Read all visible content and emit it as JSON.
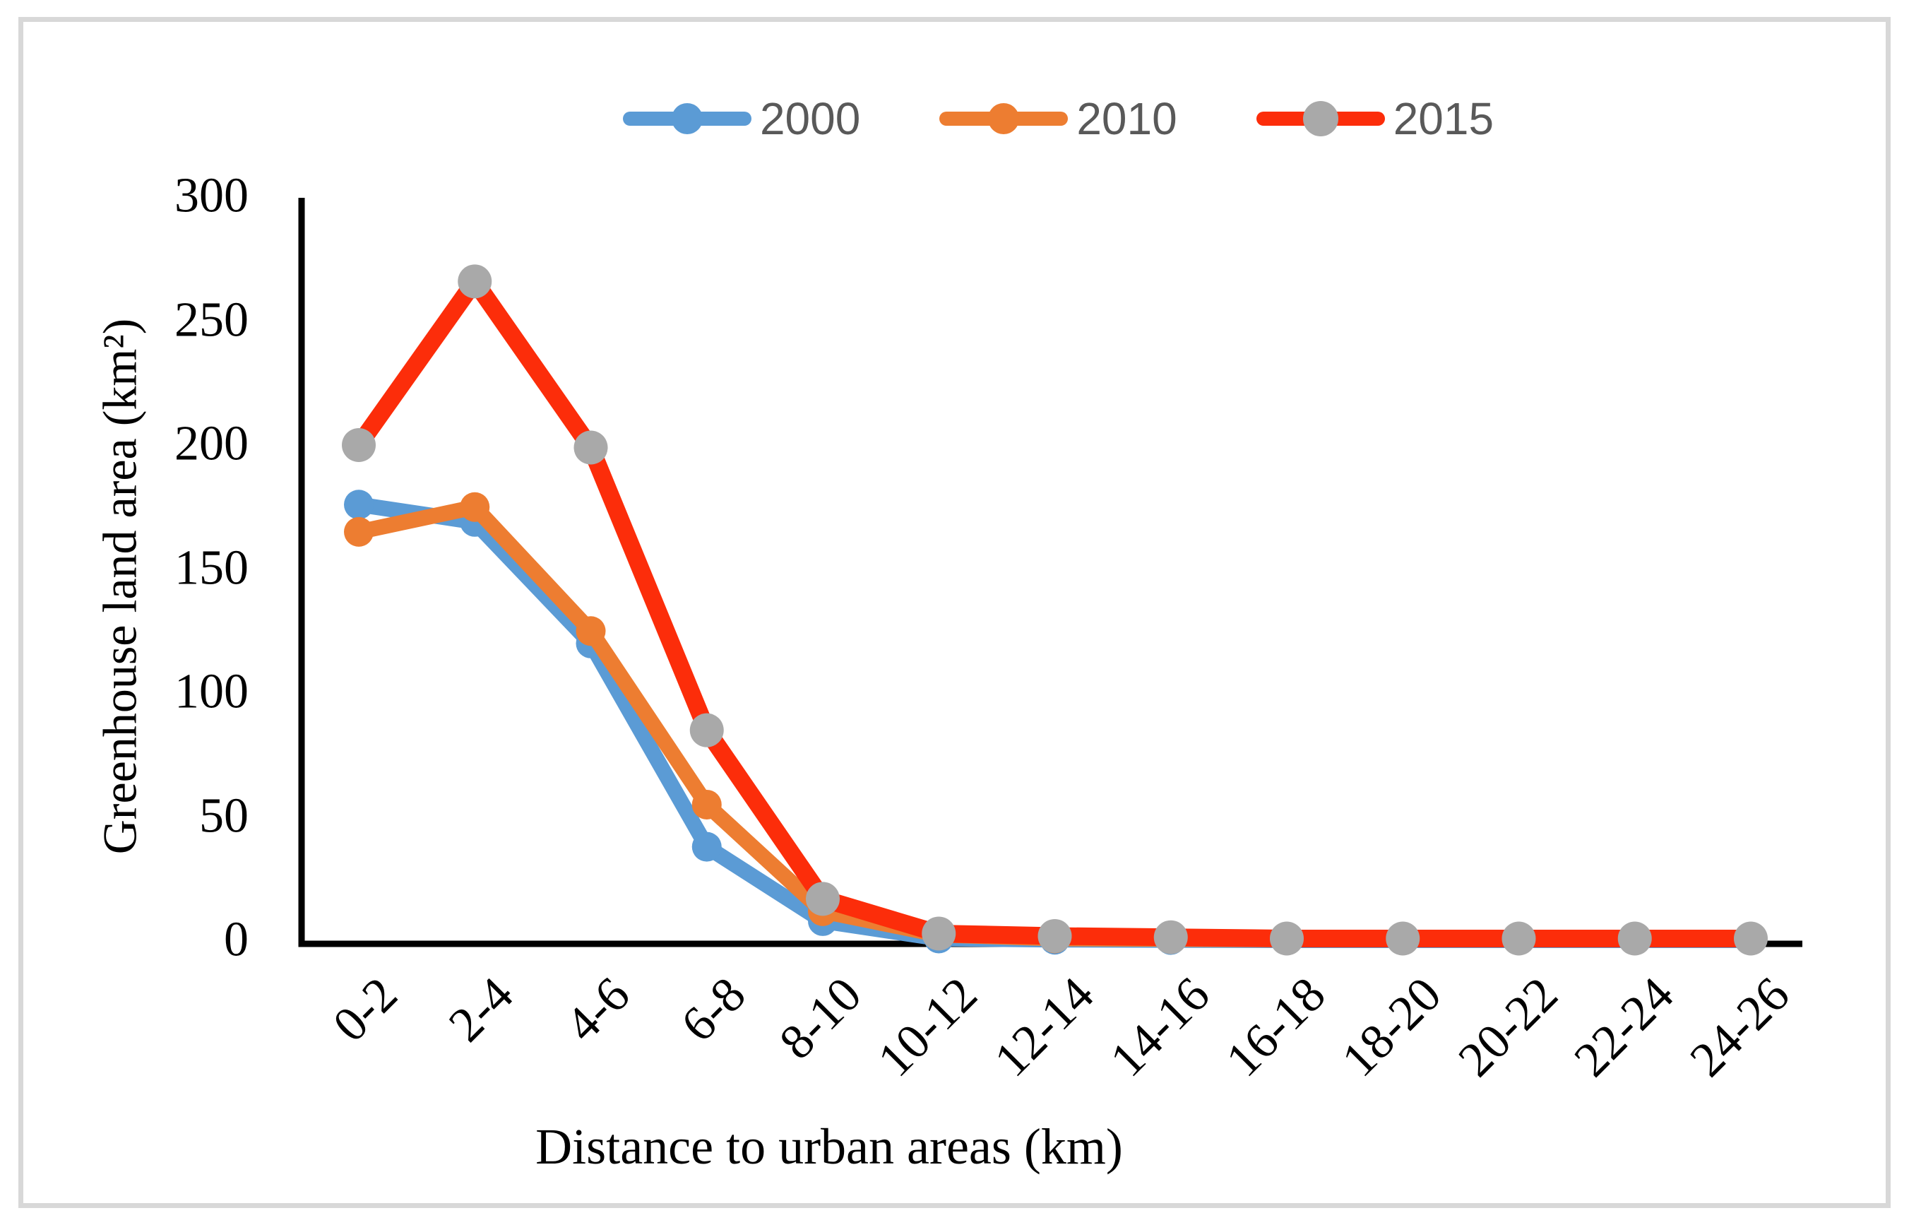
{
  "figure": {
    "background_color": "#FFFFFF",
    "border_color": "#D8D8D8"
  },
  "legend": {
    "position": "top",
    "text_color": "#595959"
  },
  "chart_data": {
    "type": "line",
    "title": "",
    "xlabel": "Distance to urban areas (km)",
    "ylabel": "Greenhouse land area (km²)",
    "categories": [
      "0-2",
      "2-4",
      "4-6",
      "6-8",
      "8-10",
      "10-12",
      "12-14",
      "14-16",
      "16-18",
      "18-20",
      "20-22",
      "22-24",
      "24-26"
    ],
    "y_ticks": [
      0,
      50,
      100,
      150,
      200,
      250,
      300
    ],
    "ylim": [
      0,
      300
    ],
    "grid": false,
    "legend_position": "top-center",
    "axis_color": "#000000",
    "series": [
      {
        "name": "2000",
        "color": "#5B9BD5",
        "marker_color": "#5B9BD5",
        "values": [
          176,
          169,
          120,
          38,
          8,
          1,
          0.5,
          0.4,
          0.3,
          0.3,
          0.3,
          0.3,
          0.3
        ]
      },
      {
        "name": "2010",
        "color": "#ED7D31",
        "marker_color": "#ED7D31",
        "values": [
          165,
          175,
          125,
          55,
          12,
          2.5,
          1,
          0.8,
          0.6,
          0.6,
          0.6,
          0.6,
          0.6
        ]
      },
      {
        "name": "2015",
        "color": "#FC2D0A",
        "marker_color": "#A9A9A9",
        "values": [
          200,
          266,
          199,
          85,
          17,
          3,
          2,
          1.5,
          1,
          1,
          1,
          1,
          1
        ]
      }
    ]
  }
}
